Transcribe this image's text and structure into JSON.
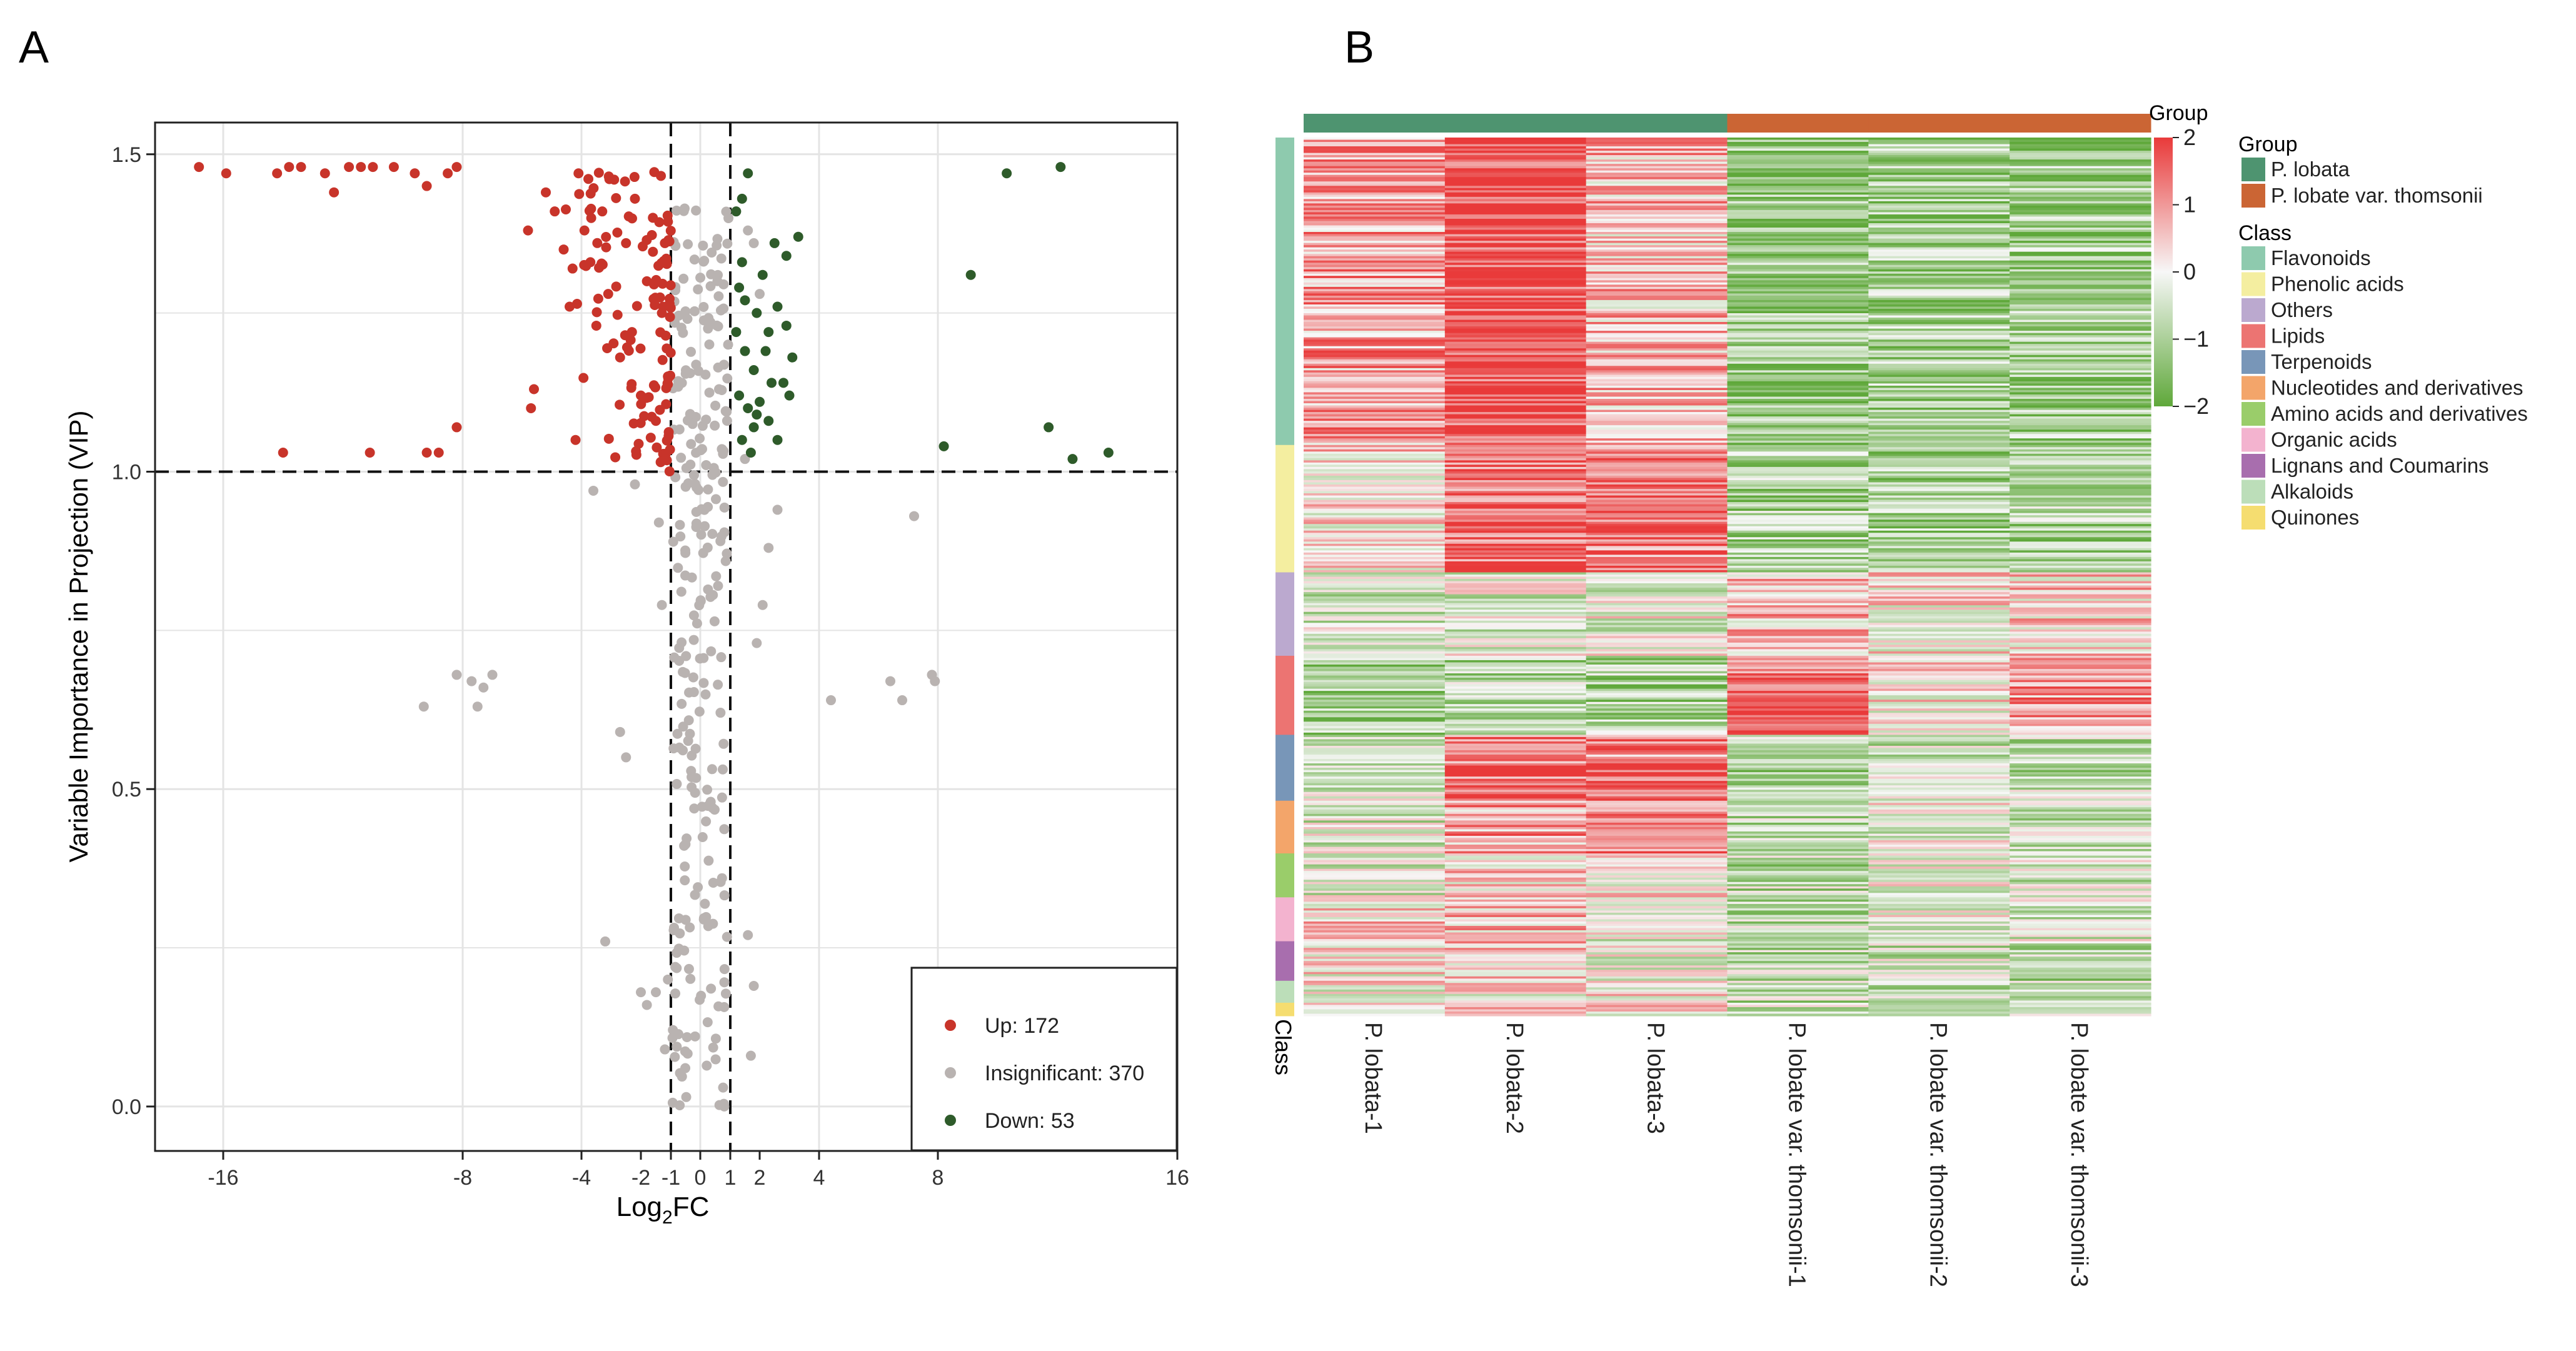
{
  "panel_a_letter": "A",
  "panel_b_letter": "B",
  "colors": {
    "up": "#c8342a",
    "insignificant": "#b9b3b1",
    "down": "#2e5b2a",
    "grid": "#e4e4e4",
    "group_p_lobata": "#4e9470",
    "group_var_thomsonii": "#cb6534"
  },
  "chart_data": [
    {
      "type": "scatter",
      "title": "",
      "xlabel_main": "Log",
      "xlabel_sub": "2",
      "xlabel_tail": "FC",
      "ylabel": "Variable Importance in Projection (VIP)",
      "xlim": [
        -18,
        16
      ],
      "ylim": [
        -0.07,
        1.55
      ],
      "x_ticks": [
        {
          "value": -16,
          "label": "-16"
        },
        {
          "value": -8,
          "label": "-8"
        },
        {
          "value": -4,
          "label": "-4"
        },
        {
          "value": -2,
          "label": "-2"
        },
        {
          "value": -1,
          "label": "-1"
        },
        {
          "value": 0,
          "label": "0"
        },
        {
          "value": 1,
          "label": "1"
        },
        {
          "value": 2,
          "label": "2"
        },
        {
          "value": 4,
          "label": "4"
        },
        {
          "value": 8,
          "label": "8"
        },
        {
          "value": 16,
          "label": "16"
        }
      ],
      "y_ticks": [
        {
          "value": 0.0,
          "label": "0.0"
        },
        {
          "value": 0.5,
          "label": "0.5"
        },
        {
          "value": 1.0,
          "label": "1.0"
        },
        {
          "value": 1.5,
          "label": "1.5"
        }
      ],
      "thresholds": {
        "x": [
          -1,
          1
        ],
        "y": 1.0
      },
      "legend": {
        "position": "bottom-right",
        "items": [
          {
            "key": "up",
            "label": "Up: 172"
          },
          {
            "key": "insignificant",
            "label": "Insignificant: 370"
          },
          {
            "key": "down",
            "label": "Down: 53"
          }
        ]
      },
      "series": [
        {
          "name": "Up",
          "key": "up",
          "count": 172,
          "points": [
            [
              -16.8,
              1.48
            ],
            [
              -15.9,
              1.47
            ],
            [
              -14.2,
              1.47
            ],
            [
              -13.8,
              1.48
            ],
            [
              -13.4,
              1.48
            ],
            [
              -12.6,
              1.47
            ],
            [
              -12.3,
              1.44
            ],
            [
              -11.8,
              1.48
            ],
            [
              -11.4,
              1.48
            ],
            [
              -11.0,
              1.48
            ],
            [
              -10.3,
              1.48
            ],
            [
              -9.6,
              1.47
            ],
            [
              -9.2,
              1.45
            ],
            [
              -8.5,
              1.47
            ],
            [
              -8.2,
              1.48
            ],
            [
              -14.0,
              1.03
            ],
            [
              -11.1,
              1.03
            ],
            [
              -9.2,
              1.03
            ],
            [
              -8.8,
              1.03
            ],
            [
              -8.2,
              1.07
            ],
            [
              -5.7,
              1.1
            ],
            [
              -5.6,
              1.13
            ],
            [
              -4.2,
              1.05
            ],
            [
              -5.8,
              1.38
            ],
            [
              -5.2,
              1.44
            ],
            [
              -4.9,
              1.41
            ],
            [
              -4.6,
              1.35
            ],
            [
              -4.4,
              1.26
            ],
            [
              -4.3,
              1.32
            ],
            [
              -4.1,
              1.47
            ],
            [
              -3.9,
              1.38
            ],
            [
              -3.7,
              1.33
            ],
            [
              -3.5,
              1.23
            ],
            [
              -3.3,
              1.41
            ],
            [
              -3.1,
              1.28
            ],
            [
              -2.9,
              1.46
            ],
            [
              -2.7,
              1.18
            ],
            [
              -2.5,
              1.36
            ],
            [
              -2.3,
              1.22
            ],
            [
              -2.2,
              1.43
            ],
            [
              -2.0,
              1.12
            ],
            [
              -1.8,
              1.3
            ],
            [
              -1.6,
              1.4
            ],
            [
              -1.5,
              1.08
            ],
            [
              -1.3,
              1.25
            ],
            [
              -1.2,
              1.36
            ],
            [
              -1.1,
              1.15
            ]
          ]
        },
        {
          "name": "Insignificant",
          "key": "insignificant",
          "count": 370,
          "points": [
            [
              -9.3,
              0.63
            ],
            [
              -8.2,
              0.68
            ],
            [
              -7.7,
              0.67
            ],
            [
              -7.5,
              0.63
            ],
            [
              -7.3,
              0.66
            ],
            [
              -7.0,
              0.68
            ],
            [
              -2.7,
              0.59
            ],
            [
              -2.5,
              0.55
            ],
            [
              -3.2,
              0.26
            ],
            [
              -2.0,
              0.18
            ],
            [
              -1.8,
              0.16
            ],
            [
              -1.5,
              0.18
            ],
            [
              -1.2,
              0.09
            ],
            [
              -1.1,
              0.2
            ],
            [
              -2.2,
              0.98
            ],
            [
              -3.6,
              0.97
            ],
            [
              -1.4,
              0.92
            ],
            [
              -1.3,
              0.79
            ],
            [
              4.4,
              0.64
            ],
            [
              6.4,
              0.67
            ],
            [
              6.8,
              0.64
            ],
            [
              7.2,
              0.93
            ],
            [
              7.8,
              0.68
            ],
            [
              7.9,
              0.67
            ],
            [
              1.6,
              0.27
            ],
            [
              1.8,
              0.19
            ],
            [
              1.7,
              0.08
            ],
            [
              1.9,
              0.73
            ],
            [
              2.1,
              0.79
            ],
            [
              2.3,
              0.88
            ],
            [
              2.6,
              0.94
            ],
            [
              2.0,
              1.28
            ],
            [
              1.8,
              1.36
            ],
            [
              1.6,
              1.38
            ],
            [
              1.5,
              1.02
            ]
          ]
        },
        {
          "name": "Down",
          "key": "down",
          "count": 53,
          "points": [
            [
              10.3,
              1.47
            ],
            [
              12.1,
              1.48
            ],
            [
              9.1,
              1.31
            ],
            [
              8.2,
              1.04
            ],
            [
              11.7,
              1.07
            ],
            [
              12.5,
              1.02
            ],
            [
              13.7,
              1.03
            ],
            [
              1.2,
              1.41
            ],
            [
              1.4,
              1.43
            ],
            [
              1.6,
              1.47
            ],
            [
              1.4,
              1.33
            ],
            [
              2.1,
              1.31
            ],
            [
              2.5,
              1.36
            ],
            [
              2.9,
              1.34
            ],
            [
              3.3,
              1.37
            ],
            [
              1.3,
              1.29
            ],
            [
              1.5,
              1.27
            ],
            [
              1.9,
              1.25
            ],
            [
              2.3,
              1.22
            ],
            [
              2.6,
              1.26
            ],
            [
              2.9,
              1.23
            ],
            [
              3.1,
              1.18
            ],
            [
              1.2,
              1.22
            ],
            [
              1.5,
              1.19
            ],
            [
              1.8,
              1.16
            ],
            [
              2.2,
              1.19
            ],
            [
              2.4,
              1.14
            ],
            [
              2.8,
              1.14
            ],
            [
              3.0,
              1.12
            ],
            [
              1.3,
              1.12
            ],
            [
              1.6,
              1.1
            ],
            [
              1.8,
              1.07
            ],
            [
              2.0,
              1.11
            ],
            [
              2.3,
              1.08
            ],
            [
              2.6,
              1.05
            ],
            [
              1.4,
              1.05
            ],
            [
              1.7,
              1.03
            ],
            [
              1.9,
              1.09
            ]
          ]
        }
      ]
    },
    {
      "type": "heatmap",
      "title": "",
      "columns": [
        "P. lobata-1",
        "P. lobata-2",
        "P. lobata-3",
        "P. lobate var. thomsonii-1",
        "P. lobate var. thomsonii-2",
        "P. lobate var. thomsonii-3"
      ],
      "column_groups": [
        "P. lobata",
        "P. lobata",
        "P. lobata",
        "P. lobate var. thomsonii",
        "P. lobate var. thomsonii",
        "P. lobate var. thomsonii"
      ],
      "class_axis_label": "Class",
      "value_range": [
        -2,
        2
      ],
      "colorbar": {
        "title": "Group",
        "colors": [
          "#e93a3a",
          "#f7f7f7",
          "#5fa83a"
        ],
        "ticks": [
          {
            "value": 2,
            "label": "2"
          },
          {
            "value": 1,
            "label": "1"
          },
          {
            "value": 0,
            "label": "0"
          },
          {
            "value": -1,
            "label": "−1"
          },
          {
            "value": -2,
            "label": "−2"
          }
        ]
      },
      "group_legend": {
        "title": "Group",
        "items": [
          {
            "label": "P. lobata",
            "color": "#4e9470"
          },
          {
            "label": "P. lobate var. thomsonii",
            "color": "#cb6534"
          }
        ]
      },
      "class_legend": {
        "title": "Class",
        "items": [
          {
            "label": "Flavonoids",
            "color": "#8ecaae",
            "rows": 140
          },
          {
            "label": "Phenolic acids",
            "color": "#f4eea0",
            "rows": 58
          },
          {
            "label": "Others",
            "color": "#bba9cf",
            "rows": 38
          },
          {
            "label": "Lipids",
            "color": "#ec7472",
            "rows": 36
          },
          {
            "label": "Terpenoids",
            "color": "#7896b8",
            "rows": 30
          },
          {
            "label": "Nucleotides and derivatives",
            "color": "#f3a56a",
            "rows": 24
          },
          {
            "label": "Amino acids and derivatives",
            "color": "#9acd6a",
            "rows": 20
          },
          {
            "label": "Organic acids",
            "color": "#f3b3cf",
            "rows": 20
          },
          {
            "label": "Lignans and Coumarins",
            "color": "#a86eae",
            "rows": 18
          },
          {
            "label": "Alkaloids",
            "color": "#bcdeb9",
            "rows": 10
          },
          {
            "label": "Quinones",
            "color": "#f5dd70",
            "rows": 6
          }
        ]
      },
      "column_means_by_class": [
        [
          0.9,
          1.8,
          0.6,
          -1.2,
          -1.0,
          -1.1
        ],
        [
          0.3,
          1.5,
          1.3,
          -1.0,
          -1.1,
          -1.0
        ],
        [
          -0.5,
          -0.3,
          -0.2,
          0.6,
          0.2,
          0.4
        ],
        [
          -1.1,
          -0.9,
          -1.0,
          1.6,
          0.2,
          1.0
        ],
        [
          -0.2,
          1.4,
          1.2,
          -1.0,
          -0.6,
          -0.7
        ],
        [
          -0.4,
          0.9,
          1.4,
          -0.8,
          -0.2,
          -0.6
        ],
        [
          -0.3,
          0.4,
          0.3,
          -0.8,
          0.0,
          -0.6
        ],
        [
          0.4,
          0.6,
          -0.2,
          -0.8,
          -0.3,
          -0.4
        ],
        [
          0.1,
          0.6,
          -0.1,
          -0.7,
          -0.6,
          -0.8
        ],
        [
          0.0,
          0.2,
          0.1,
          -0.7,
          -0.6,
          -0.7
        ],
        [
          0.2,
          0.5,
          0.2,
          -0.7,
          -0.6,
          -0.6
        ]
      ]
    }
  ]
}
